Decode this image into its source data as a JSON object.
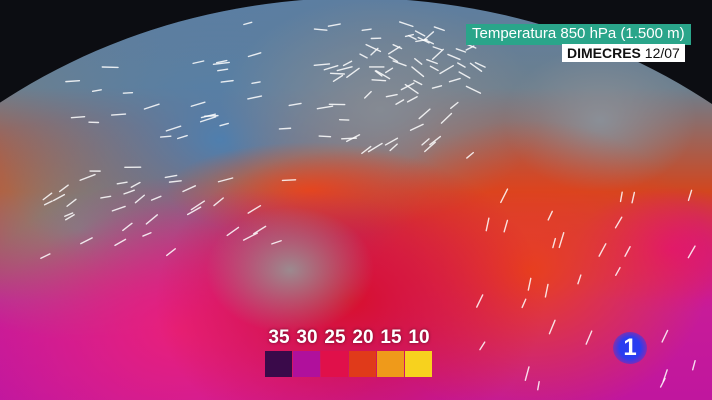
{
  "header": {
    "title": "Temperatura 850 hPa (1.500 m)",
    "day": "DIMECRES",
    "date": "12/07",
    "title_bg": "#2aa58a"
  },
  "legend": {
    "labels": [
      "35",
      "30",
      "25",
      "20",
      "15",
      "10"
    ],
    "colors": [
      "#3a0a4a",
      "#b0109c",
      "#e0104a",
      "#e03a1a",
      "#ef9a1a",
      "#f7d21e"
    ]
  },
  "logo": {
    "text": "1",
    "color": "#2a3cf0"
  },
  "map": {
    "icons": [
      "wind-arrow-icon"
    ]
  }
}
